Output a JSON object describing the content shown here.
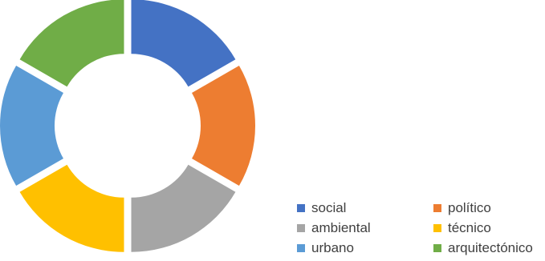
{
  "chart_data": {
    "type": "pie",
    "variant": "donut",
    "exploded": true,
    "title": "",
    "categories": [
      "social",
      "político",
      "ambiental",
      "técnico",
      "urbano",
      "arquitectónico"
    ],
    "values": [
      1,
      1,
      1,
      1,
      1,
      1
    ],
    "colors": [
      "#4472C4",
      "#ED7D31",
      "#A5A5A5",
      "#FFC000",
      "#5B9BD5",
      "#70AD47"
    ],
    "legend": {
      "placement": "bottom-right",
      "items": [
        {
          "label": "social",
          "color": "#4472C4"
        },
        {
          "label": "político",
          "color": "#ED7D31"
        },
        {
          "label": "ambiental",
          "color": "#A5A5A5"
        },
        {
          "label": "técnico",
          "color": "#FFC000"
        },
        {
          "label": "urbano",
          "color": "#5B9BD5"
        },
        {
          "label": "arquitectónico",
          "color": "#70AD47"
        }
      ]
    }
  }
}
